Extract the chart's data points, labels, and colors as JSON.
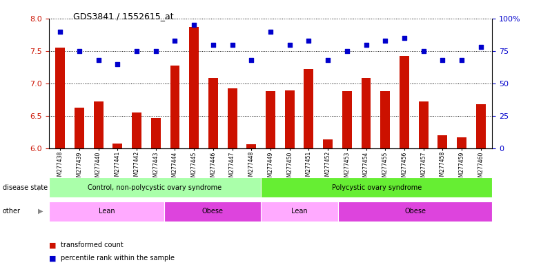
{
  "title": "GDS3841 / 1552615_at",
  "samples": [
    "GSM277438",
    "GSM277439",
    "GSM277440",
    "GSM277441",
    "GSM277442",
    "GSM277443",
    "GSM277444",
    "GSM277445",
    "GSM277446",
    "GSM277447",
    "GSM277448",
    "GSM277449",
    "GSM277450",
    "GSM277451",
    "GSM277452",
    "GSM277453",
    "GSM277454",
    "GSM277455",
    "GSM277456",
    "GSM277457",
    "GSM277458",
    "GSM277459",
    "GSM277460"
  ],
  "transformed_count": [
    7.55,
    6.63,
    6.72,
    6.07,
    6.55,
    6.47,
    7.28,
    7.87,
    7.08,
    6.92,
    6.06,
    6.88,
    6.89,
    7.22,
    6.14,
    6.88,
    7.08,
    6.88,
    7.42,
    6.72,
    6.2,
    6.17,
    6.68
  ],
  "percentile_rank": [
    90,
    75,
    68,
    65,
    75,
    75,
    83,
    95,
    80,
    80,
    68,
    90,
    80,
    83,
    68,
    75,
    80,
    83,
    85,
    75,
    68,
    68,
    78
  ],
  "ylim_left": [
    6.0,
    8.0
  ],
  "ylim_right": [
    0,
    100
  ],
  "yticks_left": [
    6.0,
    6.5,
    7.0,
    7.5,
    8.0
  ],
  "yticks_right": [
    0,
    25,
    50,
    75,
    100
  ],
  "bar_color": "#cc1100",
  "dot_color": "#0000cc",
  "disease_state_groups": [
    {
      "label": "Control, non-polycystic ovary syndrome",
      "start": 0,
      "end": 10,
      "color": "#aaffaa"
    },
    {
      "label": "Polycystic ovary syndrome",
      "start": 11,
      "end": 22,
      "color": "#66ee33"
    }
  ],
  "other_groups": [
    {
      "label": "Lean",
      "start": 0,
      "end": 5,
      "color": "#ffaaff"
    },
    {
      "label": "Obese",
      "start": 6,
      "end": 10,
      "color": "#dd44dd"
    },
    {
      "label": "Lean",
      "start": 11,
      "end": 14,
      "color": "#ffaaff"
    },
    {
      "label": "Obese",
      "start": 15,
      "end": 22,
      "color": "#dd44dd"
    }
  ],
  "legend_items": [
    {
      "label": "transformed count",
      "color": "#cc1100"
    },
    {
      "label": "percentile rank within the sample",
      "color": "#0000cc"
    }
  ],
  "background_color": "#ffffff",
  "plot_bg": "#ffffff"
}
